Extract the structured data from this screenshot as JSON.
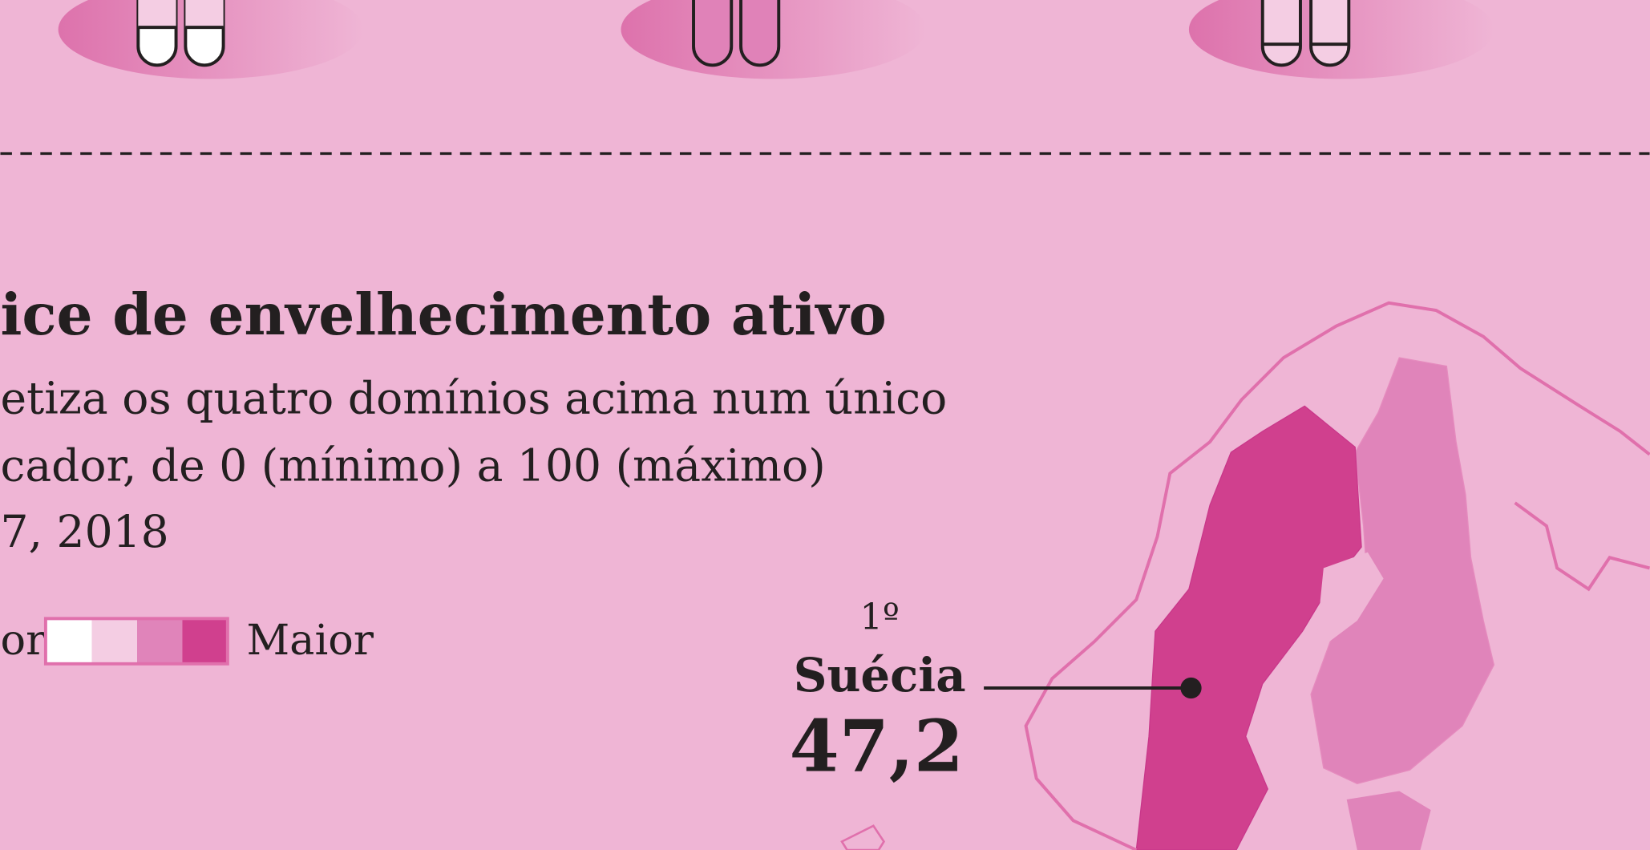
{
  "infographic": {
    "title": "ice de envelhecimento ativo",
    "subtitle_lines": [
      "etiza os quatro domínios acima num único",
      "cador, de 0 (mínimo) a 100 (máximo)",
      "7, 2018"
    ],
    "legend": {
      "low": "or",
      "high": "Maior"
    },
    "callout": {
      "rank": "1º",
      "country": "Suécia",
      "value": "47,2"
    }
  }
}
